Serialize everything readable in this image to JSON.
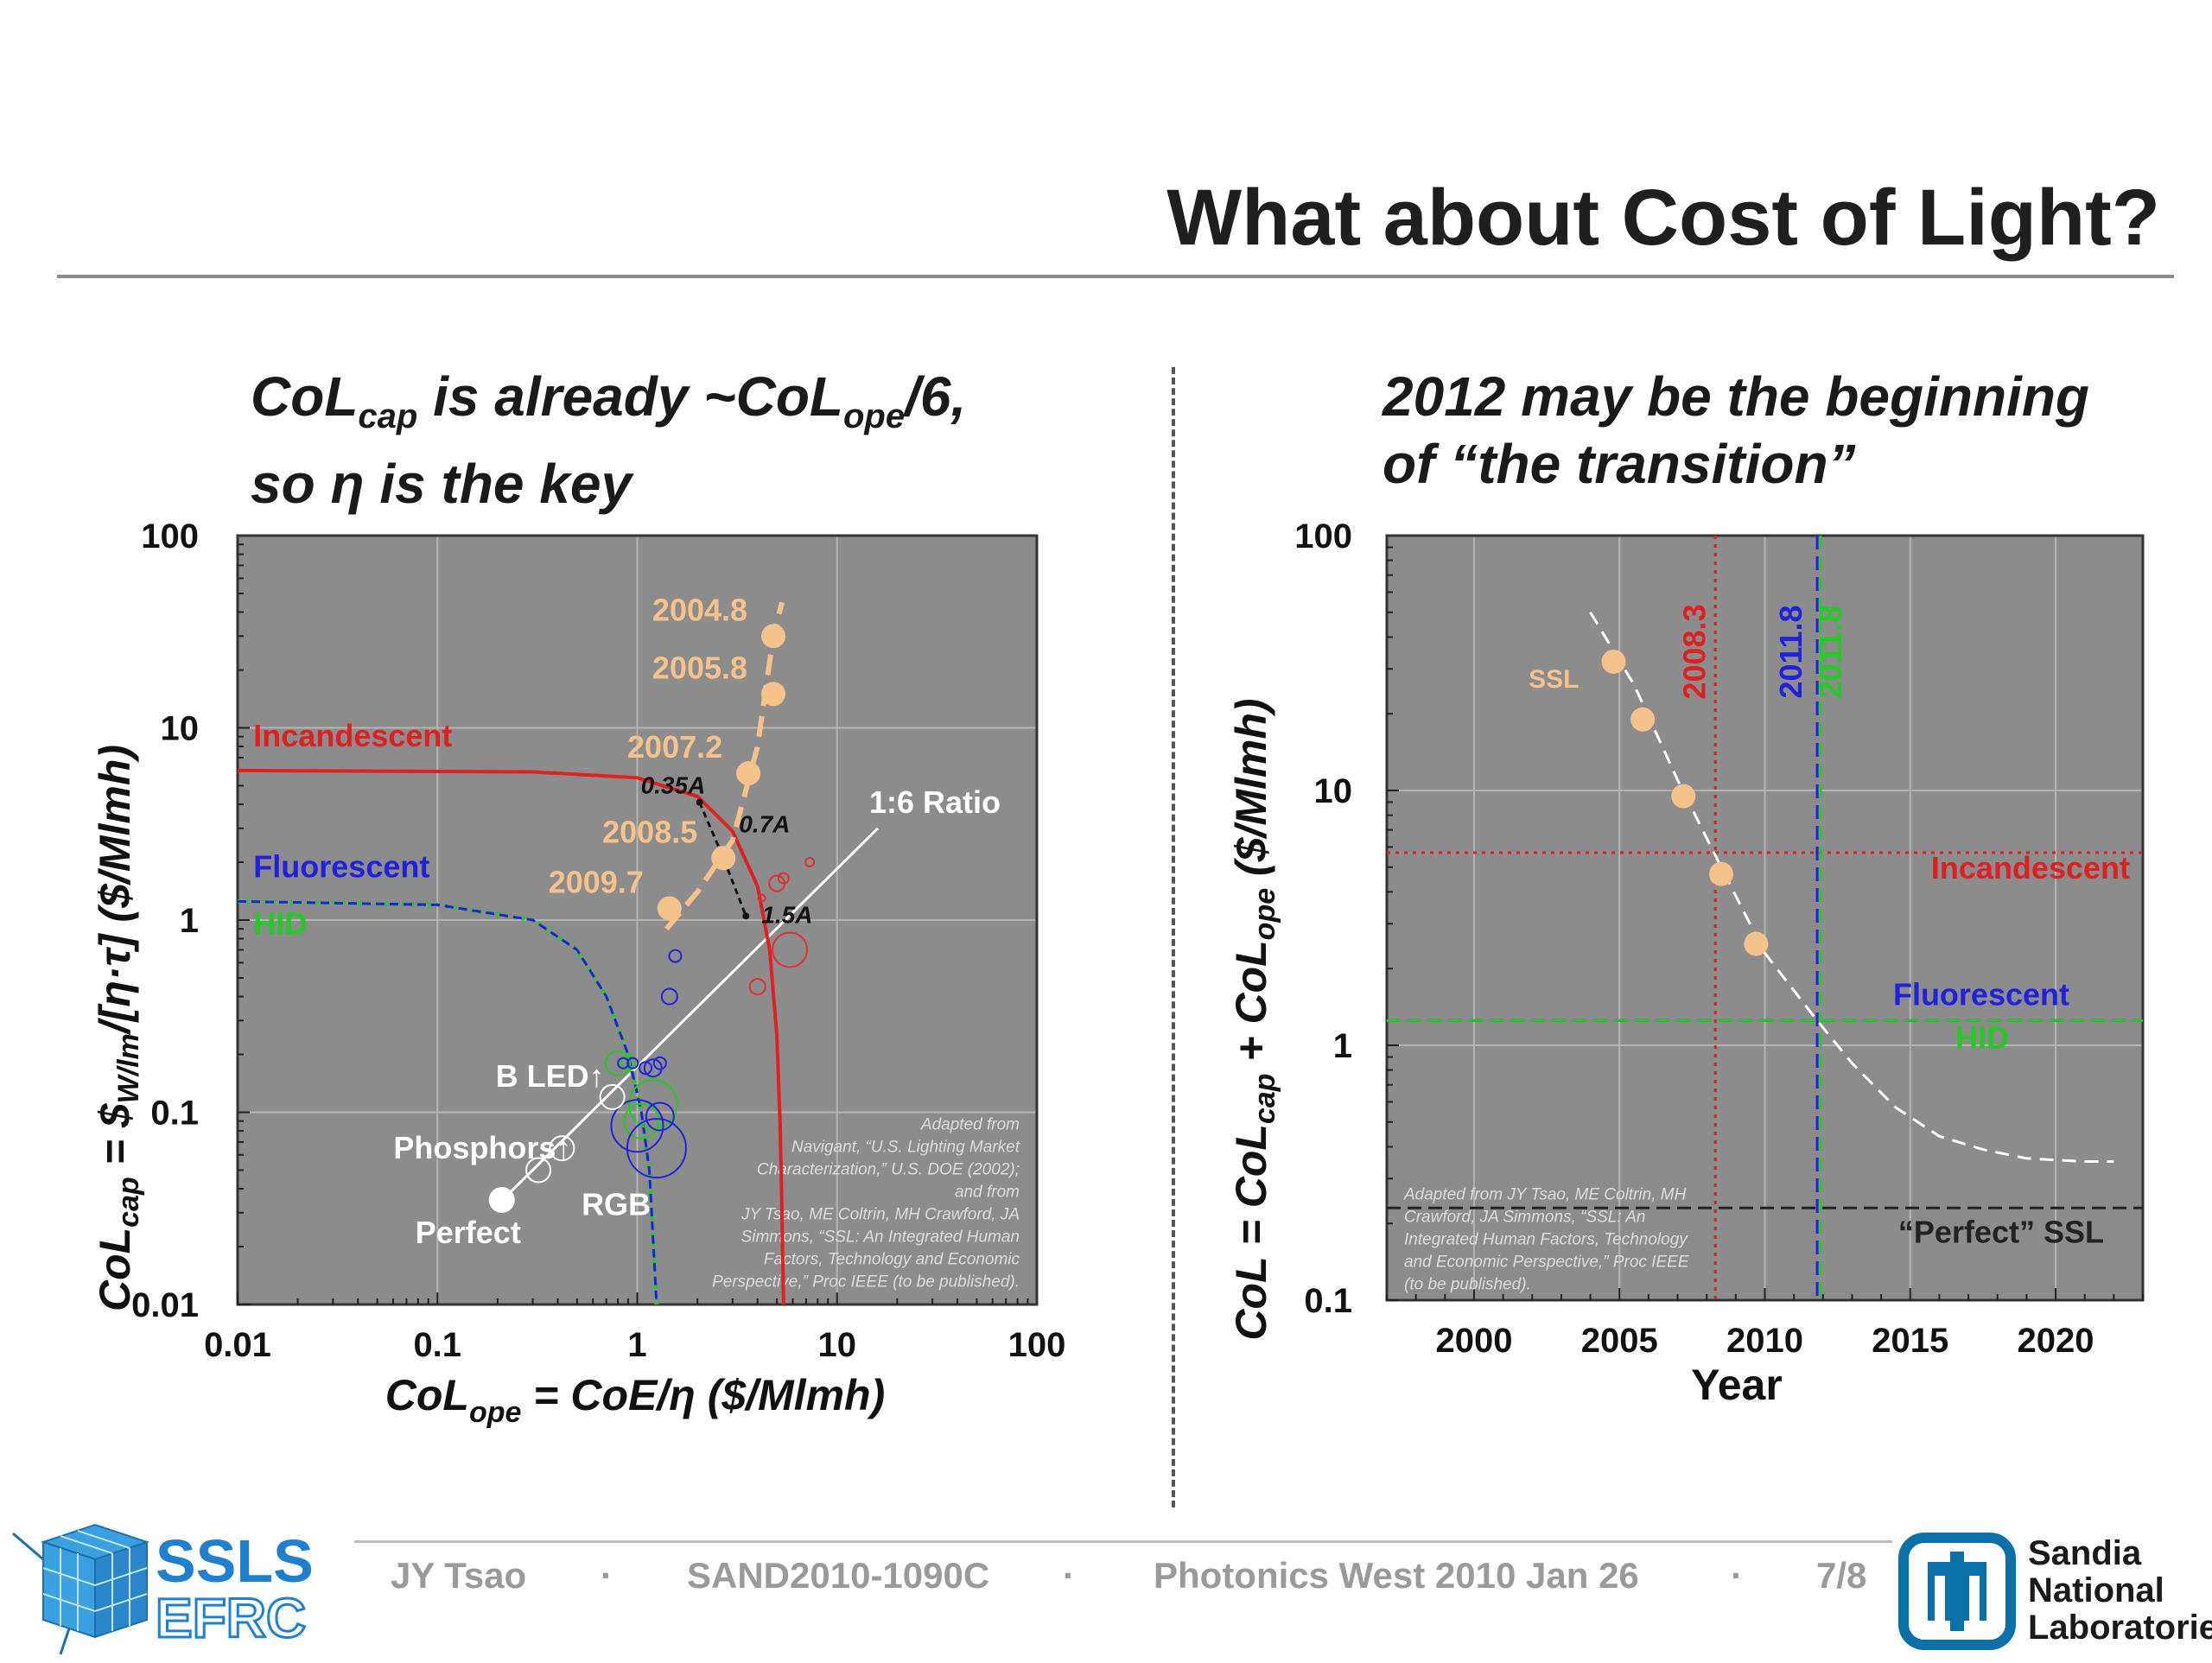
{
  "slide": {
    "title": "What about Cost of Light?"
  },
  "left_panel": {
    "subtitle_line1_parts": [
      "CoL",
      "cap",
      " is already ~CoL",
      "ope",
      "/6,"
    ],
    "subtitle_line2": "so η is the key"
  },
  "right_panel": {
    "subtitle_line1": "2012 may be the beginning",
    "subtitle_line2": "of “the transition”"
  },
  "footer": {
    "author": "JY Tsao",
    "doc_id": "SAND2010-1090C",
    "event": "Photonics West 2010 Jan 26",
    "page": "7/8",
    "separator": "·",
    "logo_left_line1": "SSLS",
    "logo_left_line2": "EFRC",
    "logo_right_lines": [
      "Sandia",
      "National",
      "Laboratories"
    ]
  },
  "chart_data": [
    {
      "type": "scatter",
      "scale": "log-log",
      "xlim": [
        0.01,
        100
      ],
      "ylim": [
        0.01,
        100
      ],
      "x_ticks": [
        "0.01",
        "0.1",
        "1",
        "10",
        "100"
      ],
      "y_ticks": [
        "100",
        "10",
        "1",
        "0.1",
        "0.01"
      ],
      "xlabel_parts": [
        "CoL",
        "ope",
        " = CoE/η ($/Mlmh)"
      ],
      "ylabel_parts": [
        "CoL",
        "cap",
        " = $",
        "W/lm",
        "/[η·τ] ($/Mlmh)"
      ],
      "grid": true,
      "background": "#8c8c8c",
      "incandescent_curve": {
        "name": "Incandescent",
        "color": "#e02020",
        "points": [
          [
            0.01,
            6
          ],
          [
            0.3,
            5.9
          ],
          [
            1,
            5.5
          ],
          [
            2,
            4.4
          ],
          [
            3,
            2.9
          ],
          [
            4,
            1.5
          ],
          [
            4.6,
            0.7
          ],
          [
            5,
            0.25
          ],
          [
            5.2,
            0.08
          ],
          [
            5.4,
            0.01
          ]
        ]
      },
      "fluorescent_curve": {
        "name": "Fluorescent",
        "color": "#2020dd",
        "points": [
          [
            0.01,
            1.25
          ],
          [
            0.1,
            1.2
          ],
          [
            0.3,
            1.0
          ],
          [
            0.5,
            0.7
          ],
          [
            0.7,
            0.4
          ],
          [
            0.9,
            0.2
          ],
          [
            1.05,
            0.1
          ],
          [
            1.15,
            0.05
          ],
          [
            1.25,
            0.01
          ]
        ]
      },
      "hid_label": {
        "name": "HID",
        "color": "#22cc22"
      },
      "ssl_points": {
        "color": "#f5c28c",
        "points": [
          {
            "x": 4.8,
            "y": 30,
            "label": "2004.8"
          },
          {
            "x": 4.8,
            "y": 15,
            "label": "2005.8"
          },
          {
            "x": 3.6,
            "y": 5.8,
            "label": "2007.2"
          },
          {
            "x": 2.7,
            "y": 2.1,
            "label": "2008.5"
          },
          {
            "x": 1.45,
            "y": 1.15,
            "label": "2009.7"
          }
        ],
        "trend": [
          [
            1.4,
            0.9
          ],
          [
            2,
            1.4
          ],
          [
            3,
            2.6
          ],
          [
            4,
            8
          ],
          [
            4.8,
            30
          ],
          [
            5.3,
            45
          ]
        ]
      },
      "current_points": [
        {
          "x": 2.05,
          "y": 4.1,
          "label": "0.35A"
        },
        {
          "x": 2.7,
          "y": 2.1,
          "label": "0.7A"
        },
        {
          "x": 3.5,
          "y": 1.05,
          "label": "1.5A"
        }
      ],
      "ratio_line": {
        "label": "1:6 Ratio",
        "points": [
          [
            0.2,
            0.033
          ],
          [
            16,
            3
          ]
        ]
      },
      "white_points": [
        {
          "x": 0.21,
          "y": 0.035,
          "label": "Perfect",
          "filled": true
        },
        {
          "x": 0.32,
          "y": 0.05,
          "label": "RGB",
          "filled": false
        },
        {
          "x": 0.42,
          "y": 0.065,
          "label": "Phosphors↑",
          "filled": false
        },
        {
          "x": 0.75,
          "y": 0.12,
          "label": "B LED↑",
          "filled": false
        }
      ],
      "red_circles": [
        [
          5.8,
          0.7,
          20
        ],
        [
          4,
          0.45,
          9
        ],
        [
          5,
          1.55,
          9
        ],
        [
          5.4,
          1.65,
          6
        ],
        [
          7.3,
          2,
          5
        ],
        [
          4.2,
          1.3,
          4
        ]
      ],
      "blue_circles": [
        [
          1,
          0.085,
          30
        ],
        [
          1.25,
          0.065,
          34
        ],
        [
          1.3,
          0.095,
          16
        ],
        [
          1.2,
          0.17,
          10
        ],
        [
          1.1,
          0.17,
          7
        ],
        [
          0.95,
          0.18,
          6
        ],
        [
          0.85,
          0.18,
          6
        ],
        [
          1.3,
          0.18,
          7
        ],
        [
          1.45,
          0.4,
          9
        ],
        [
          1.55,
          0.65,
          7
        ]
      ],
      "green_circles": [
        [
          0.8,
          0.18,
          14
        ],
        [
          1.2,
          0.11,
          28
        ],
        [
          1.05,
          0.09,
          20
        ],
        [
          0.9,
          0.18,
          8
        ]
      ],
      "source_note": [
        "Adapted from",
        "Navigant, “U.S. Lighting Market",
        "Characterization,” U.S. DOE (2002);",
        "and from",
        "JY Tsao, ME Coltrin, MH Crawford, JA",
        "Simmons, “SSL: An Integrated Human",
        "Factors, Technology and Economic",
        "Perspective,” Proc IEEE (to be published)."
      ]
    },
    {
      "type": "scatter",
      "scale": "log-y",
      "xlim": [
        1997,
        2023
      ],
      "ylim": [
        0.1,
        100
      ],
      "x_ticks": [
        "2000",
        "2005",
        "2010",
        "2015",
        "2020"
      ],
      "y_ticks": [
        "100",
        "10",
        "1",
        "0.1"
      ],
      "xlabel": "Year",
      "ylabel_parts": [
        "CoL = CoL",
        "cap",
        " + CoL",
        "ope",
        " ($/Mlmh)"
      ],
      "grid": true,
      "background": "#8c8c8c",
      "ssl_points": {
        "name": "SSL",
        "color": "#f5c28c",
        "points": [
          [
            2004.8,
            32
          ],
          [
            2005.8,
            19
          ],
          [
            2007.2,
            9.5
          ],
          [
            2008.5,
            4.7
          ],
          [
            2009.7,
            2.5
          ]
        ]
      },
      "ssl_trend": [
        [
          2004,
          50
        ],
        [
          2005.5,
          26
        ],
        [
          2007,
          11
        ],
        [
          2008.5,
          5
        ],
        [
          2010,
          2.3
        ],
        [
          2011.8,
          1.25
        ],
        [
          2013,
          0.85
        ],
        [
          2014.5,
          0.57
        ],
        [
          2016,
          0.44
        ],
        [
          2017.5,
          0.39
        ],
        [
          2019,
          0.36
        ],
        [
          2021,
          0.35
        ],
        [
          2022,
          0.35
        ]
      ],
      "horizontal_lines": [
        {
          "name": "Incandescent",
          "y": 5.7,
          "color": "#dd2020",
          "style": "dotted"
        },
        {
          "name": "Fluorescent",
          "y": 1.25,
          "color": "#2020dd",
          "style": "dashed"
        },
        {
          "name": "HID",
          "y": 1.25,
          "color": "#22cc22",
          "style": "dashed"
        },
        {
          "name": "“Perfect” SSL",
          "y": 0.23,
          "color": "#222222",
          "style": "dashed"
        }
      ],
      "vertical_lines": [
        {
          "label": "2008.3",
          "x": 2008.3,
          "color": "#dd2020",
          "style": "dotted"
        },
        {
          "label": "2011.8",
          "x": 2011.8,
          "color": "#2020dd",
          "style": "dashed"
        },
        {
          "label": "2011.8",
          "x": 2011.8,
          "color": "#22cc22",
          "style": "dashed"
        }
      ],
      "source_note": [
        "Adapted from JY Tsao, ME Coltrin, MH",
        "Crawford, JA Simmons, “SSL: An",
        "Integrated Human Factors, Technology",
        "and Economic Perspective,” Proc IEEE",
        "(to be published)."
      ]
    }
  ]
}
